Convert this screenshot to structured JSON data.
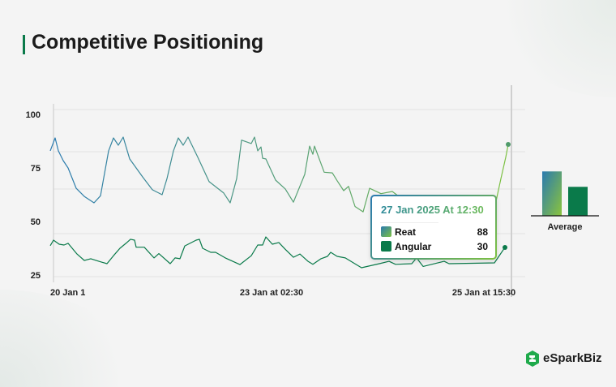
{
  "title": "Competitive Positioning",
  "brand": "eSparkBiz",
  "colors": {
    "reat_start": "#2a7ab0",
    "reat_end": "#7dc142",
    "angular": "#0a7a4a",
    "accent": "#0a7a4a"
  },
  "tooltip": {
    "title": "27 Jan 2025 At 12:30",
    "rows": [
      {
        "label": "Reat",
        "value": "88"
      },
      {
        "label": "Angular",
        "value": "30"
      }
    ]
  },
  "chart_data": [
    {
      "type": "line",
      "title": "",
      "xlabel": "",
      "ylabel": "",
      "ylim": [
        25,
        100
      ],
      "yticks": [
        "100",
        "75",
        "50",
        "25"
      ],
      "xticks": [
        "20 Jan  1",
        "23 Jan at 02:30",
        "25 Jan at 15:30"
      ],
      "xlim": [
        0,
        565
      ],
      "series": [
        {
          "name": "Reat",
          "x": [
            0,
            6,
            10,
            16,
            22,
            32,
            42,
            54,
            62,
            72,
            78,
            84,
            90,
            98,
            114,
            126,
            138,
            144,
            152,
            158,
            164,
            170,
            182,
            196,
            214,
            222,
            230,
            236,
            248,
            252,
            256,
            260,
            262,
            266,
            278,
            290,
            300,
            314,
            320,
            324,
            326,
            338,
            348,
            354,
            362,
            368,
            376,
            386,
            394,
            408,
            422,
            436,
            460,
            490,
            520,
            548,
            556,
            562,
            565
          ],
          "values": [
            83,
            89,
            83,
            78.4,
            75,
            65.5,
            61.7,
            58.7,
            62,
            83,
            89,
            85.6,
            89.4,
            79.2,
            70.8,
            64.8,
            62.5,
            70,
            83,
            89,
            85.6,
            89.4,
            80,
            68.6,
            63.3,
            58.7,
            70,
            88,
            86.4,
            89.4,
            83,
            84.8,
            79.5,
            79.2,
            69.3,
            65.2,
            59,
            72,
            85.2,
            81.4,
            85.2,
            73,
            72.7,
            69,
            64.4,
            66.4,
            57,
            54.5,
            65.5,
            63,
            64,
            60,
            58,
            56,
            57,
            56,
            70,
            80,
            86
          ]
        },
        {
          "name": "Angular",
          "x": [
            0,
            4,
            11,
            17,
            22,
            33,
            42,
            50,
            60,
            70,
            78,
            86,
            94,
            99,
            104,
            106,
            116,
            128,
            134,
            148,
            154,
            160,
            166,
            180,
            184,
            188,
            198,
            204,
            216,
            234,
            248,
            256,
            262,
            266,
            274,
            282,
            290,
            300,
            308,
            318,
            324,
            334,
            342,
            346,
            354,
            364,
            384,
            406,
            418,
            426,
            446,
            452,
            460,
            486,
            492,
            548,
            561
          ],
          "values": [
            38.7,
            41.3,
            39.4,
            39,
            39.8,
            34.8,
            31.8,
            32.6,
            31.4,
            30.3,
            34,
            37.5,
            40,
            41.7,
            41.3,
            38,
            38,
            33,
            35,
            30.3,
            33,
            32.6,
            38.6,
            41.3,
            41.7,
            37.5,
            35.6,
            35.6,
            33,
            29.9,
            34,
            39,
            39,
            42.8,
            39.4,
            40.2,
            37,
            33.3,
            34.8,
            31.4,
            30,
            32.6,
            33.7,
            35.6,
            33.7,
            33,
            28.4,
            30.3,
            31.4,
            30,
            30.3,
            33,
            29,
            31.4,
            30.3,
            30.7,
            37.9
          ]
        }
      ]
    },
    {
      "type": "bar",
      "categories": [
        "Average"
      ],
      "series": [
        {
          "name": "Reat",
          "values": [
            72
          ]
        },
        {
          "name": "Angular",
          "values": [
            47
          ]
        }
      ],
      "ylim": [
        0,
        100
      ]
    }
  ]
}
